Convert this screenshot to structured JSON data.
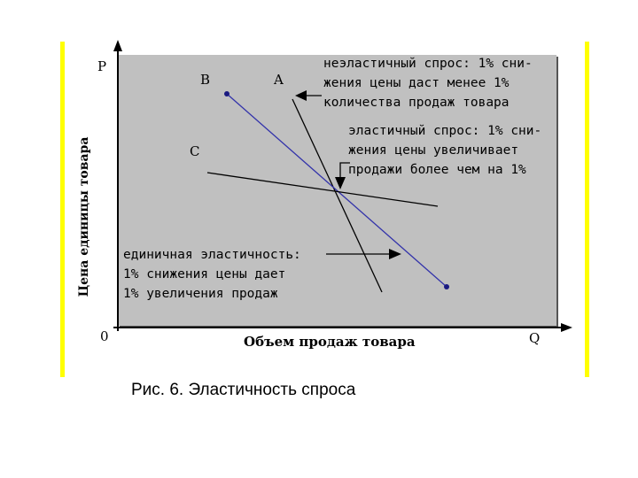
{
  "diagram": {
    "axis_labels": {
      "y_symbol": "P",
      "x_symbol": "Q",
      "origin": "0"
    },
    "y_axis_title": "Цена единицы товара",
    "x_axis_title": "Объем продаж товара",
    "point_labels": {
      "a": "A",
      "b": "B",
      "c": "C"
    },
    "notes": {
      "inelastic": [
        "неэластичный спрос: 1% сни-",
        "жения цены даст менее 1%",
        "количества продаж товара"
      ],
      "elastic": [
        "эластичный спрос: 1% сни-",
        "жения цены увеличивает",
        "продажи более чем на 1%"
      ],
      "unit": [
        "единичная эластичность:",
        "1% снижения цены дает",
        "1% увеличения продаж"
      ]
    },
    "colors": {
      "plot_background": "#c0c0c0",
      "side_bars": "#ffff00",
      "line_b": "#3333aa",
      "lines": "#000000"
    }
  },
  "caption": "Рис. 6. Эластичность спроса"
}
